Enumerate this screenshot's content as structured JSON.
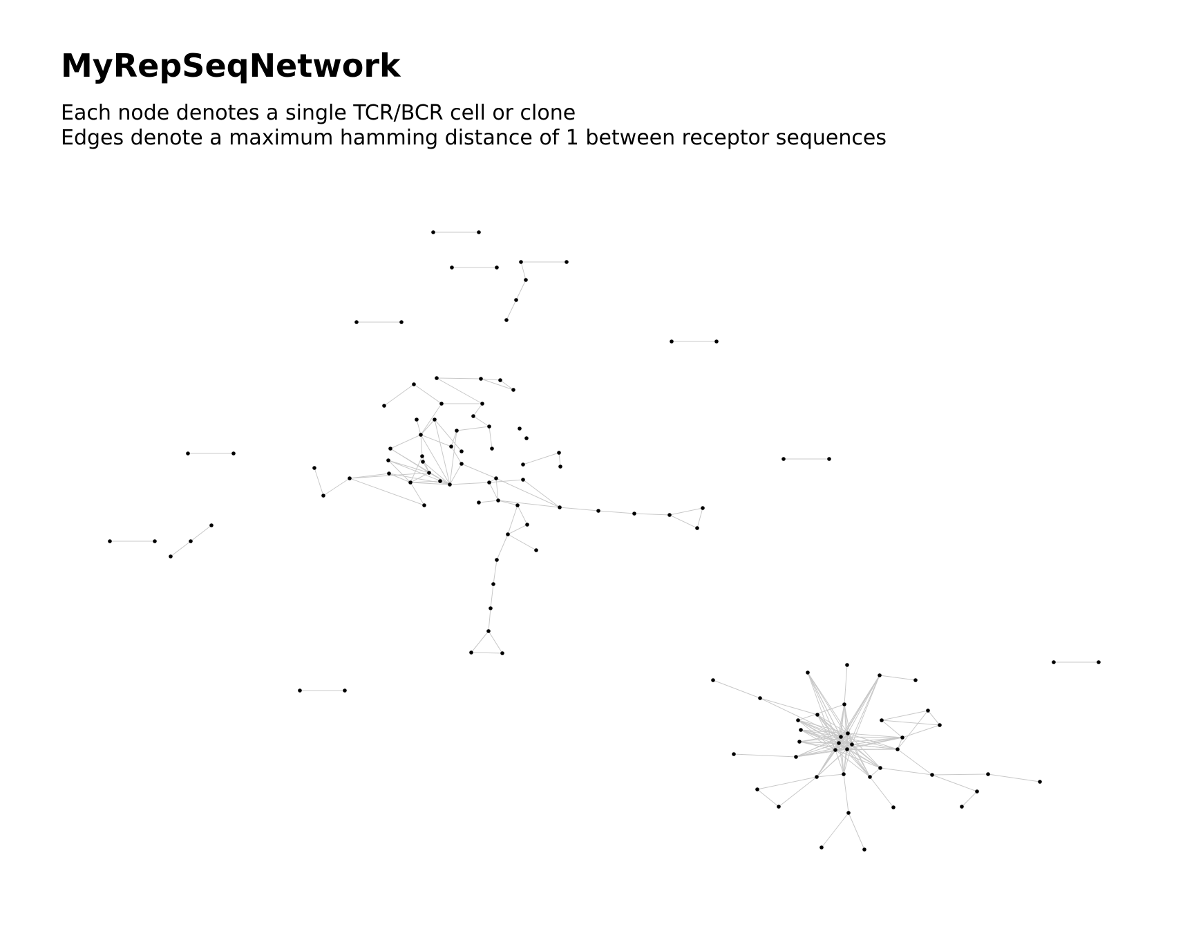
{
  "plot": {
    "title": "MyRepSeqNetwork",
    "subtitle_lines": [
      "Each node denotes a single TCR/BCR cell or clone",
      "Edges denote a maximum hamming distance of 1 between receptor sequences"
    ]
  },
  "colors": {
    "background": "#ffffff",
    "node": "#000000",
    "edge": "#c8c8c8",
    "text": "#000000"
  },
  "graph": {
    "node_count": 145,
    "components": "two large clusters plus several small pairs, chains and triangles"
  }
}
